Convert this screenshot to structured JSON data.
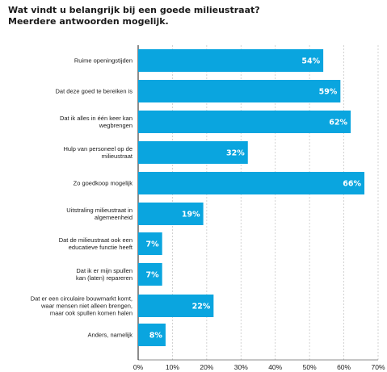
{
  "chart_data": {
    "type": "bar",
    "orientation": "horizontal",
    "title_lines": [
      "Wat vindt u belangrijk bij een goede milieustraat?",
      "Meerdere antwoorden mogelijk."
    ],
    "categories": [
      [
        "Ruime openingstijden"
      ],
      [
        "Dat deze goed te bereiken is"
      ],
      [
        "Dat ik alles in één keer kan",
        "wegbrengen"
      ],
      [
        "Hulp van personeel op de",
        "milieustraat"
      ],
      [
        "Zo goedkoop mogelijk"
      ],
      [
        "Uitstraling milieustraat in",
        "algemeenheid"
      ],
      [
        "Dat de milieustraat ook een",
        "educatieve functie heeft"
      ],
      [
        "Dat ik er mijn spullen",
        "kan (laten) repareren"
      ],
      [
        "Dat er een circulaire bouwmarkt komt,",
        "waar mensen niet alleen brengen,",
        "maar ook spullen komen halen"
      ],
      [
        "Anders, namelijk"
      ]
    ],
    "values": [
      54,
      59,
      62,
      32,
      66,
      19,
      7,
      7,
      22,
      8
    ],
    "value_labels": [
      "54%",
      "59%",
      "62%",
      "32%",
      "66%",
      "19%",
      "7%",
      "7%",
      "22%",
      "8%"
    ],
    "xlim": [
      0,
      70
    ],
    "x_ticks": [
      0,
      10,
      20,
      30,
      40,
      50,
      60,
      70
    ],
    "x_tick_labels": [
      "0%",
      "10%",
      "20%",
      "30%",
      "40%",
      "50%",
      "60%",
      "70%"
    ],
    "bar_color": "#0aa5df",
    "grid": true
  }
}
